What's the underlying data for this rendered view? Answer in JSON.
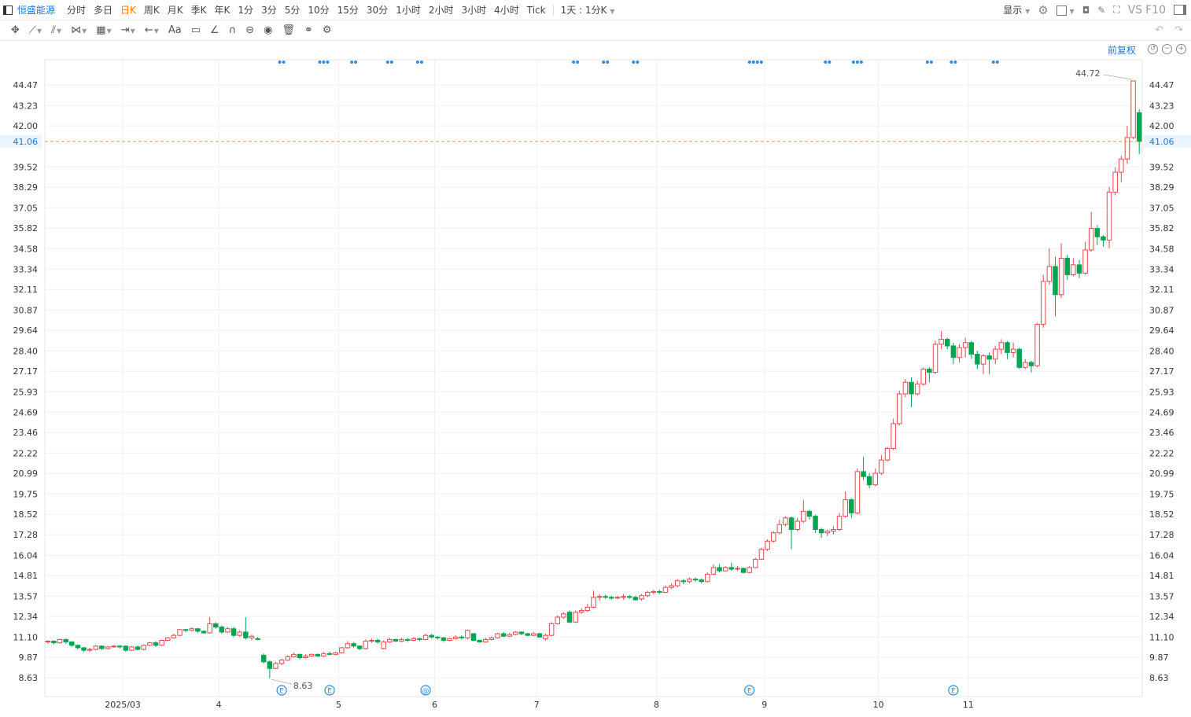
{
  "topbar": {
    "symbol": "恒盛能源",
    "timeframes": [
      "分时",
      "多日",
      "日K",
      "周K",
      "月K",
      "季K",
      "年K",
      "1分",
      "3分",
      "5分",
      "10分",
      "15分",
      "30分",
      "1小时",
      "2小时",
      "3小时",
      "4小时",
      "Tick"
    ],
    "active_timeframe": "日K",
    "period_mode": "1天 : 1分K",
    "display": "显示",
    "vs": "VS",
    "f10": "F10"
  },
  "toolbar": {
    "text_tool": "Aa"
  },
  "adjust_label": "前复权",
  "price_marker": "41.06",
  "colors": {
    "up": "#e8474d",
    "down": "#00a551",
    "accent": "#1e78e6",
    "active_tab": "#ff7a00",
    "last_line": "#f29b2c",
    "event": "#2f8de4"
  },
  "chart_data": {
    "type": "candlestick",
    "y_ticks": [
      "44.47",
      "43.23",
      "42.00",
      "41.06",
      "39.52",
      "38.29",
      "37.05",
      "35.82",
      "34.58",
      "33.34",
      "32.11",
      "30.87",
      "29.64",
      "28.40",
      "27.17",
      "25.93",
      "24.69",
      "23.46",
      "22.22",
      "20.99",
      "19.75",
      "18.52",
      "17.28",
      "16.04",
      "14.81",
      "13.57",
      "12.34",
      "11.10",
      "9.87",
      "8.63"
    ],
    "ylim": [
      7.5,
      46.0
    ],
    "x_labels": [
      {
        "label": "2025/03",
        "index": 13
      },
      {
        "label": "4",
        "index": 29
      },
      {
        "label": "5",
        "index": 49
      },
      {
        "label": "6",
        "index": 65
      },
      {
        "label": "7",
        "index": 82
      },
      {
        "label": "8",
        "index": 102
      },
      {
        "label": "9",
        "index": 120
      },
      {
        "label": "10",
        "index": 139
      },
      {
        "label": "11",
        "index": 154
      }
    ],
    "last_price": 41.06,
    "high_label": "44.72",
    "low_label": "8.63",
    "event_markers": [
      {
        "index": 39,
        "symbol": "E"
      },
      {
        "index": 47,
        "symbol": "E"
      },
      {
        "index": 63,
        "symbol": "@"
      },
      {
        "index": 117,
        "symbol": "E"
      },
      {
        "index": 151,
        "symbol": "E"
      }
    ],
    "dot_groups": [
      {
        "index": 39,
        "count": 2
      },
      {
        "index": 46,
        "count": 3
      },
      {
        "index": 51,
        "count": 2
      },
      {
        "index": 57,
        "count": 2
      },
      {
        "index": 62,
        "count": 2
      },
      {
        "index": 88,
        "count": 2
      },
      {
        "index": 93,
        "count": 2
      },
      {
        "index": 98,
        "count": 2
      },
      {
        "index": 118,
        "count": 4
      },
      {
        "index": 130,
        "count": 2
      },
      {
        "index": 135,
        "count": 3
      },
      {
        "index": 147,
        "count": 2
      },
      {
        "index": 151,
        "count": 2
      },
      {
        "index": 158,
        "count": 2
      }
    ],
    "candles": [
      [
        10.8,
        10.85,
        10.7,
        10.9
      ],
      [
        10.85,
        10.75,
        10.65,
        10.9
      ],
      [
        10.75,
        10.95,
        10.7,
        11.0
      ],
      [
        10.95,
        10.8,
        10.7,
        11.0
      ],
      [
        10.8,
        10.6,
        10.5,
        10.85
      ],
      [
        10.6,
        10.45,
        10.35,
        10.65
      ],
      [
        10.45,
        10.3,
        10.2,
        10.5
      ],
      [
        10.3,
        10.35,
        10.2,
        10.45
      ],
      [
        10.35,
        10.55,
        10.3,
        10.6
      ],
      [
        10.55,
        10.4,
        10.3,
        10.6
      ],
      [
        10.4,
        10.5,
        10.35,
        10.55
      ],
      [
        10.5,
        10.55,
        10.45,
        10.6
      ],
      [
        10.55,
        10.5,
        10.4,
        10.6
      ],
      [
        10.55,
        10.3,
        10.2,
        10.6
      ],
      [
        10.3,
        10.5,
        10.25,
        10.55
      ],
      [
        10.5,
        10.35,
        10.3,
        10.6
      ],
      [
        10.35,
        10.6,
        10.3,
        10.65
      ],
      [
        10.6,
        10.75,
        10.55,
        10.8
      ],
      [
        10.75,
        10.6,
        10.5,
        10.85
      ],
      [
        10.6,
        10.9,
        10.55,
        10.95
      ],
      [
        10.9,
        11.05,
        10.85,
        11.1
      ],
      [
        11.05,
        11.2,
        11.0,
        11.3
      ],
      [
        11.2,
        11.55,
        11.15,
        11.6
      ],
      [
        11.55,
        11.5,
        11.4,
        11.6
      ],
      [
        11.5,
        11.6,
        11.45,
        11.7
      ],
      [
        11.6,
        11.45,
        11.35,
        11.65
      ],
      [
        11.45,
        11.35,
        11.3,
        11.5
      ],
      [
        11.35,
        11.9,
        11.3,
        12.3
      ],
      [
        11.9,
        11.7,
        11.6,
        12.0
      ],
      [
        11.7,
        11.4,
        11.3,
        11.8
      ],
      [
        11.4,
        11.6,
        11.35,
        11.7
      ],
      [
        11.6,
        11.2,
        11.1,
        11.7
      ],
      [
        11.2,
        11.4,
        11.1,
        11.5
      ],
      [
        11.4,
        11.05,
        10.95,
        12.3
      ],
      [
        11.05,
        11.15,
        10.9,
        11.25
      ],
      [
        11.0,
        10.95,
        10.9,
        11.1
      ],
      [
        10.0,
        9.6,
        9.5,
        10.1
      ],
      [
        9.6,
        9.2,
        8.63,
        9.7
      ],
      [
        9.2,
        9.5,
        9.15,
        9.6
      ],
      [
        9.5,
        9.7,
        9.4,
        9.8
      ],
      [
        9.7,
        9.9,
        9.65,
        10.0
      ],
      [
        9.9,
        10.05,
        9.85,
        10.15
      ],
      [
        10.05,
        9.85,
        9.75,
        10.1
      ],
      [
        9.85,
        9.95,
        9.8,
        10.05
      ],
      [
        9.95,
        10.05,
        9.9,
        10.1
      ],
      [
        10.05,
        9.95,
        9.9,
        10.1
      ],
      [
        9.95,
        10.1,
        9.9,
        10.2
      ],
      [
        10.1,
        10.05,
        10.0,
        10.2
      ],
      [
        10.05,
        10.15,
        10.0,
        10.2
      ],
      [
        10.15,
        10.45,
        10.1,
        10.5
      ],
      [
        10.45,
        10.7,
        10.4,
        10.85
      ],
      [
        10.7,
        10.55,
        10.45,
        10.8
      ],
      [
        10.55,
        10.4,
        10.3,
        10.6
      ],
      [
        10.4,
        10.85,
        10.35,
        10.95
      ],
      [
        10.85,
        10.9,
        10.75,
        11.0
      ],
      [
        10.9,
        10.8,
        10.7,
        11.0
      ],
      [
        10.4,
        10.8,
        10.35,
        10.9
      ],
      [
        10.8,
        10.95,
        10.75,
        11.05
      ],
      [
        10.95,
        10.85,
        10.8,
        11.0
      ],
      [
        10.85,
        10.95,
        10.8,
        11.05
      ],
      [
        10.95,
        10.9,
        10.8,
        11.05
      ],
      [
        10.9,
        11.0,
        10.85,
        11.1
      ],
      [
        11.0,
        10.95,
        10.85,
        11.05
      ],
      [
        10.95,
        11.2,
        10.9,
        11.3
      ],
      [
        11.2,
        11.1,
        11.0,
        11.3
      ],
      [
        11.1,
        11.05,
        10.95,
        11.15
      ],
      [
        11.05,
        10.9,
        10.8,
        11.1
      ],
      [
        10.9,
        11.0,
        10.85,
        11.05
      ],
      [
        11.0,
        11.1,
        10.95,
        11.2
      ],
      [
        11.1,
        11.05,
        10.95,
        11.2
      ],
      [
        11.05,
        11.5,
        10.95,
        11.55
      ],
      [
        11.3,
        10.9,
        10.85,
        11.35
      ],
      [
        10.9,
        10.8,
        10.75,
        10.95
      ],
      [
        10.8,
        10.95,
        10.75,
        11.05
      ],
      [
        10.95,
        11.05,
        10.9,
        11.15
      ],
      [
        11.05,
        11.3,
        11.0,
        11.35
      ],
      [
        11.3,
        11.15,
        11.1,
        11.4
      ],
      [
        11.15,
        11.25,
        11.1,
        11.35
      ],
      [
        11.25,
        11.4,
        11.2,
        11.45
      ],
      [
        11.4,
        11.3,
        11.2,
        11.45
      ],
      [
        11.3,
        11.2,
        11.15,
        11.35
      ],
      [
        11.2,
        11.3,
        11.15,
        11.4
      ],
      [
        11.3,
        11.1,
        11.05,
        11.35
      ],
      [
        11.0,
        11.2,
        10.9,
        11.3
      ],
      [
        11.2,
        11.9,
        11.15,
        12.0
      ],
      [
        11.9,
        12.3,
        11.85,
        12.4
      ],
      [
        12.3,
        12.5,
        12.2,
        12.6
      ],
      [
        12.6,
        12.0,
        11.95,
        12.7
      ],
      [
        12.0,
        12.6,
        11.95,
        12.7
      ],
      [
        12.6,
        12.7,
        12.5,
        12.85
      ],
      [
        12.7,
        12.9,
        12.6,
        13.1
      ],
      [
        12.9,
        13.5,
        12.85,
        13.9
      ],
      [
        13.5,
        13.55,
        13.3,
        13.7
      ],
      [
        13.55,
        13.5,
        13.4,
        13.65
      ],
      [
        13.5,
        13.45,
        13.35,
        13.6
      ],
      [
        13.45,
        13.5,
        13.4,
        13.6
      ],
      [
        13.5,
        13.55,
        13.35,
        13.7
      ],
      [
        13.55,
        13.5,
        13.4,
        13.65
      ],
      [
        13.5,
        13.35,
        13.3,
        13.6
      ],
      [
        13.4,
        13.6,
        13.3,
        13.7
      ],
      [
        13.6,
        13.8,
        13.5,
        13.9
      ],
      [
        13.8,
        13.85,
        13.7,
        13.95
      ],
      [
        13.85,
        13.8,
        13.7,
        13.95
      ],
      [
        13.8,
        14.1,
        13.75,
        14.2
      ],
      [
        14.1,
        14.2,
        14.0,
        14.35
      ],
      [
        14.2,
        14.5,
        14.1,
        14.6
      ],
      [
        14.5,
        14.45,
        14.3,
        14.6
      ],
      [
        14.45,
        14.6,
        14.35,
        14.7
      ],
      [
        14.6,
        14.55,
        14.45,
        14.7
      ],
      [
        14.55,
        14.45,
        14.35,
        14.65
      ]
    ]
  }
}
